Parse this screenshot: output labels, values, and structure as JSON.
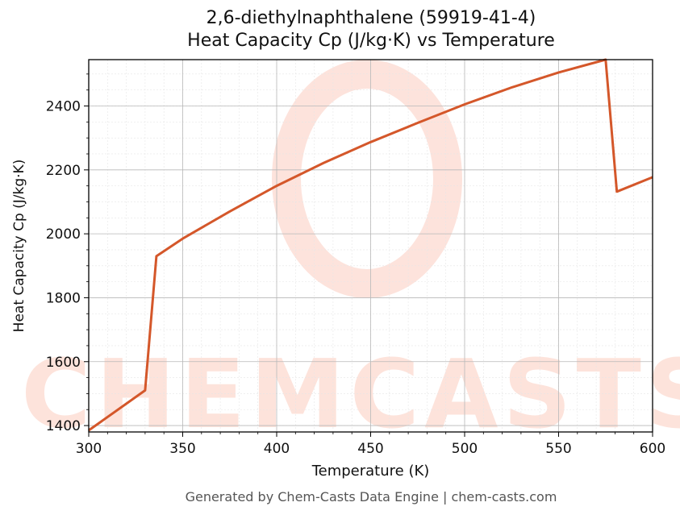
{
  "chart_data": {
    "type": "line",
    "title": "2,6-diethylnaphthalene (59919-41-4)",
    "subtitle": "Heat Capacity Cp (J/kg·K) vs Temperature",
    "xlabel": "Temperature (K)",
    "ylabel": "Heat Capacity Cp (J/kg·K)",
    "xlim": [
      300,
      600
    ],
    "ylim": [
      1380,
      2545
    ],
    "x_ticks": [
      300,
      350,
      400,
      450,
      500,
      550,
      600
    ],
    "y_ticks": [
      1400,
      1600,
      1800,
      2000,
      2200,
      2400
    ],
    "grid": true,
    "series": [
      {
        "color": "#d4572a",
        "points": [
          [
            300,
            1385
          ],
          [
            330,
            1510
          ],
          [
            336,
            1930
          ],
          [
            350,
            1985
          ],
          [
            375,
            2070
          ],
          [
            400,
            2150
          ],
          [
            425,
            2222
          ],
          [
            450,
            2287
          ],
          [
            475,
            2347
          ],
          [
            500,
            2405
          ],
          [
            525,
            2458
          ],
          [
            550,
            2505
          ],
          [
            575,
            2545
          ],
          [
            581,
            2132
          ],
          [
            600,
            2177
          ]
        ]
      }
    ]
  },
  "watermark": {
    "text": "CHEMCASTS",
    "color": "#fde0d8"
  },
  "footer": "Generated by Chem-Casts Data Engine | chem-casts.com"
}
